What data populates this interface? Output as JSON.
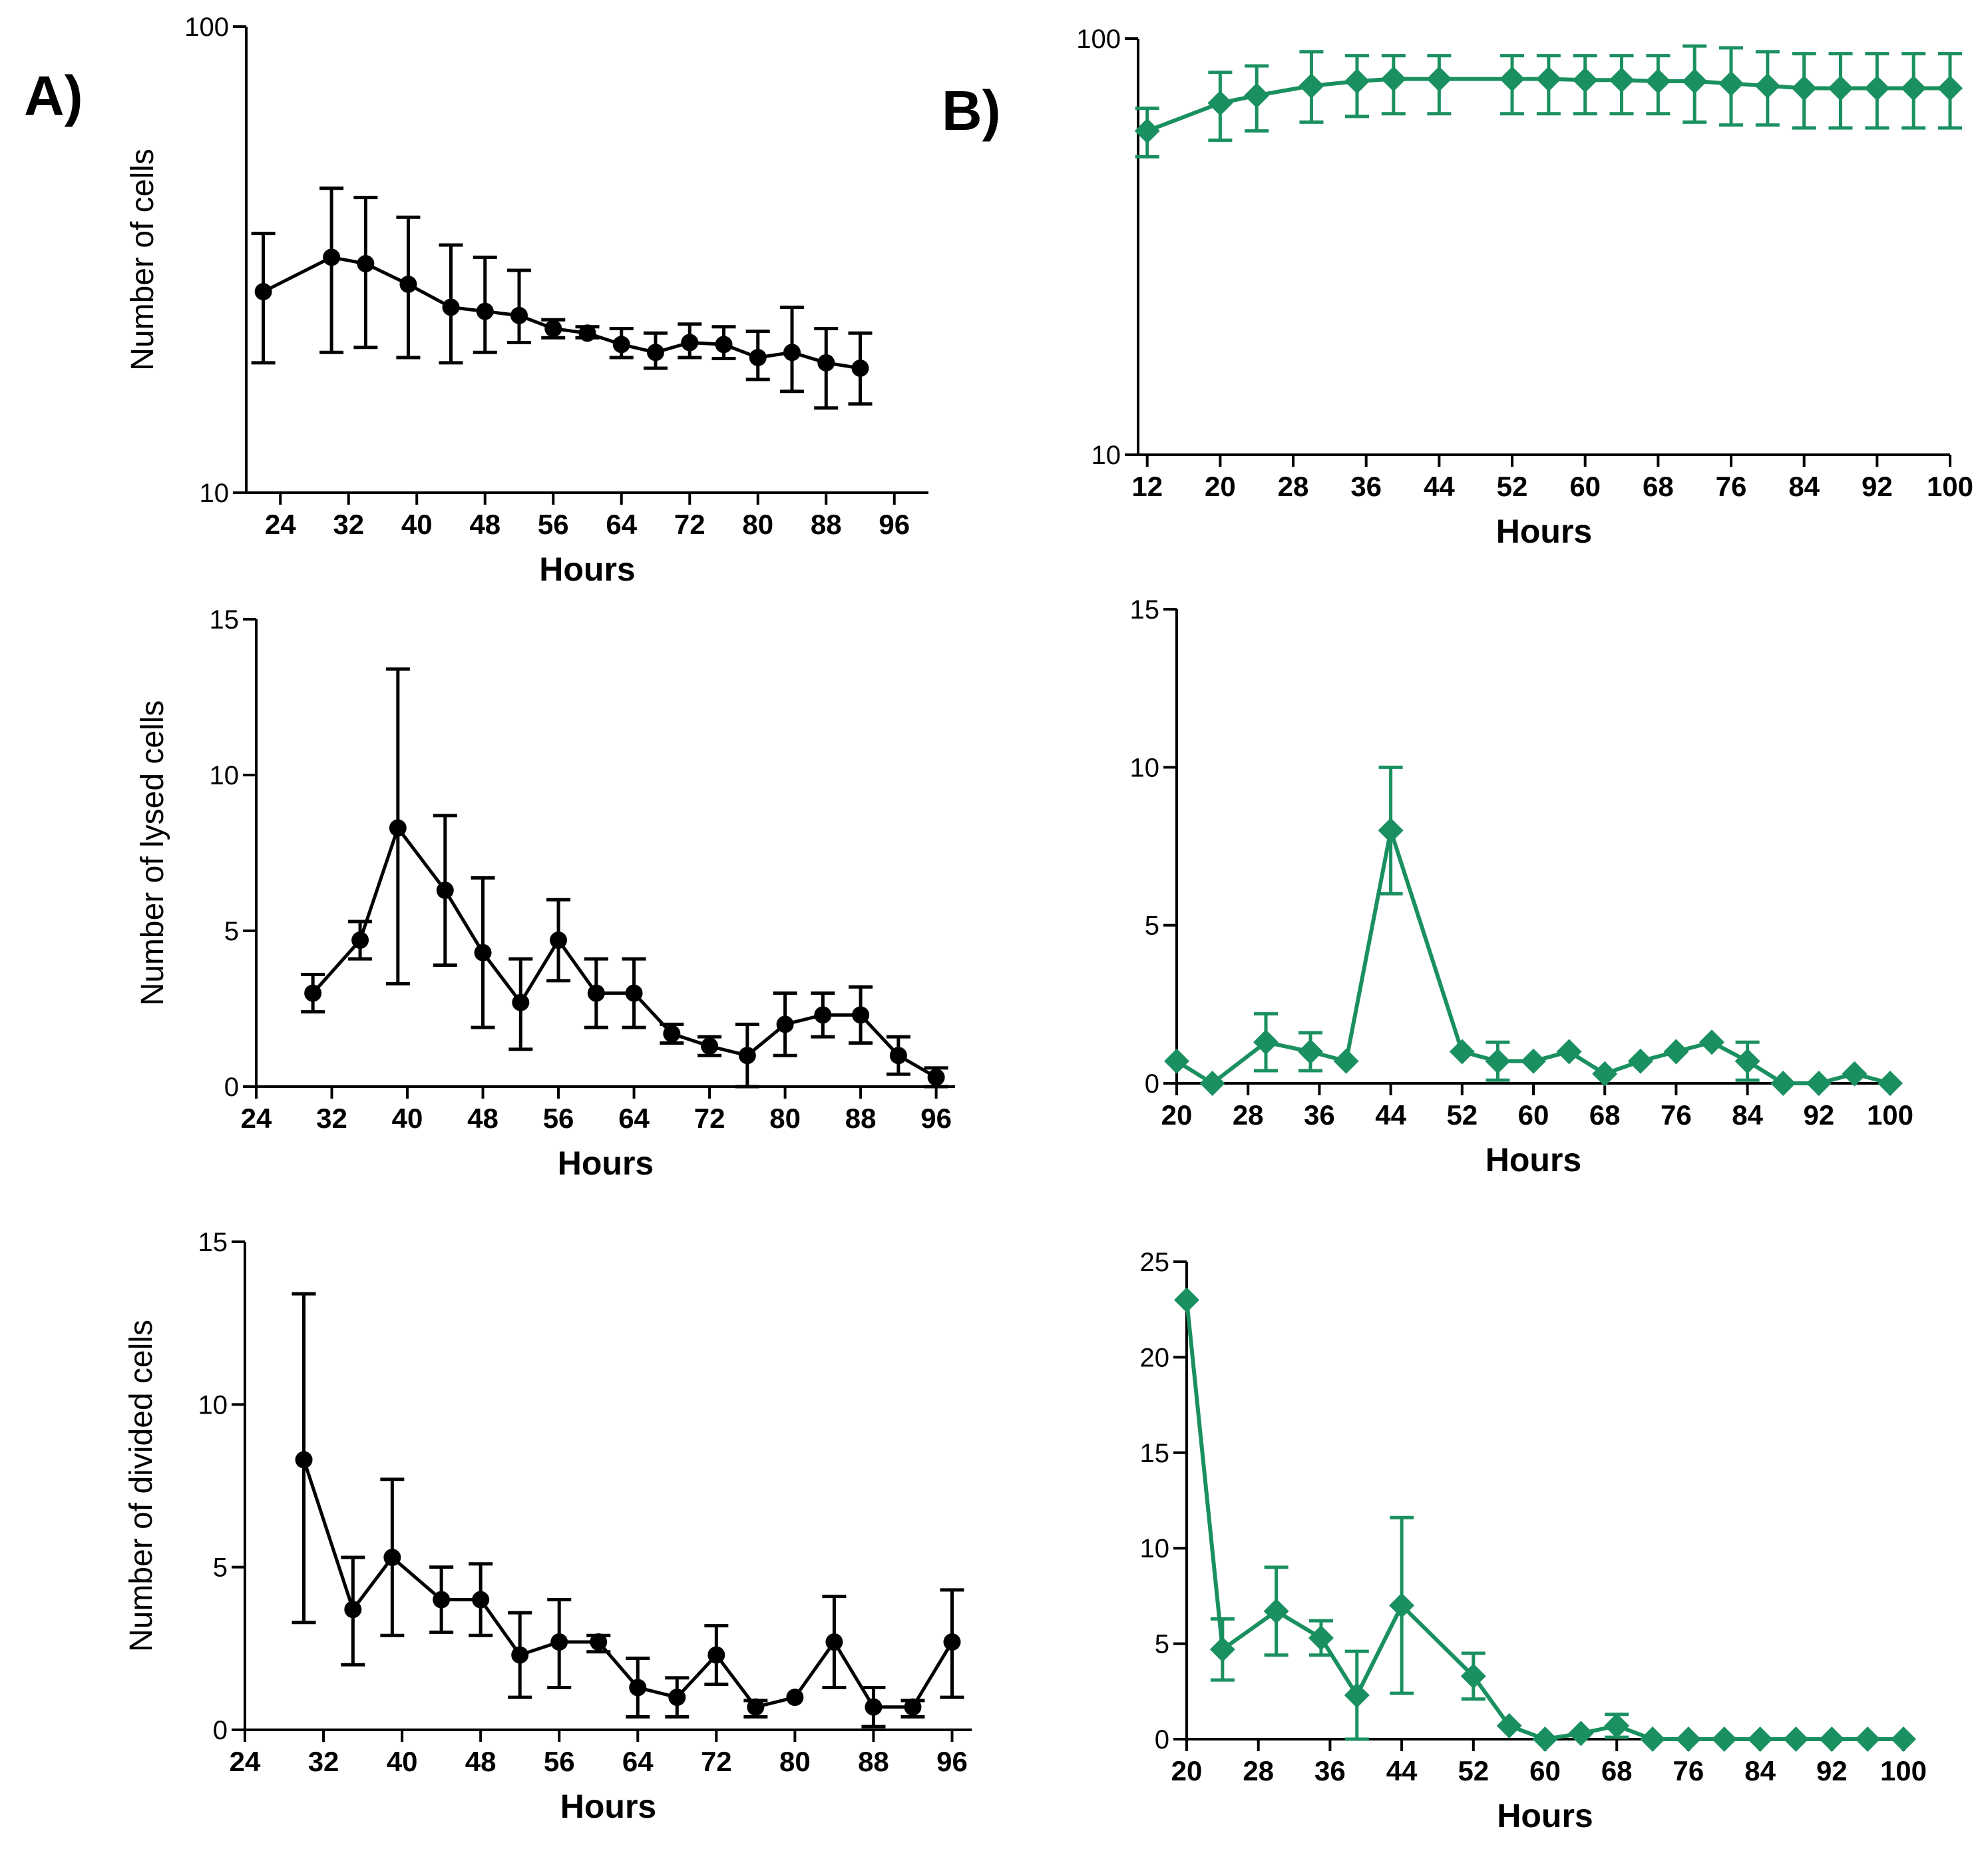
{
  "figure": {
    "panel_a_label": "A)",
    "panel_b_label": "B)",
    "colors": {
      "panel_a": "#000000",
      "panel_b": "#1a9060"
    }
  },
  "chart_data": [
    {
      "id": "a1",
      "panel": "A)",
      "type": "line",
      "yscale": "log",
      "xlabel": "Hours",
      "ylabel": "Number of cells",
      "xlim": [
        20,
        100
      ],
      "ylim": [
        10,
        100
      ],
      "xticks": [
        "24",
        "32",
        "40",
        "48",
        "56",
        "64",
        "72",
        "80",
        "88",
        "96"
      ],
      "yticks": [
        "10",
        "100"
      ],
      "marker": "circle",
      "series": [
        {
          "name": "Panel A",
          "x": [
            22,
            30,
            34,
            39,
            44,
            48,
            52,
            56,
            60,
            64,
            68,
            72,
            76,
            80,
            84,
            88,
            92
          ],
          "y": [
            27,
            32,
            31,
            28,
            25,
            24.5,
            24,
            22.5,
            22,
            20.8,
            20,
            21,
            20.8,
            19.5,
            20,
            19,
            18.5
          ],
          "upper": [
            36,
            45,
            43,
            39,
            34,
            32,
            30,
            23.5,
            22.7,
            22.5,
            22,
            23,
            22.7,
            22.2,
            25,
            22.5,
            22
          ],
          "lower": [
            19,
            20,
            20.5,
            19.5,
            19,
            20,
            21,
            21.5,
            21.5,
            19.5,
            18.5,
            19.5,
            19.4,
            17.5,
            16.5,
            15.2,
            15.5
          ]
        }
      ]
    },
    {
      "id": "a2",
      "panel": "A)",
      "type": "line",
      "yscale": "linear",
      "xlabel": "Hours",
      "ylabel": "Number of lysed cells",
      "xlim": [
        24,
        98
      ],
      "ylim": [
        0,
        15
      ],
      "xticks": [
        "24",
        "32",
        "40",
        "48",
        "56",
        "64",
        "72",
        "80",
        "88",
        "96"
      ],
      "yticks": [
        "0",
        "5",
        "10",
        "15"
      ],
      "marker": "circle",
      "series": [
        {
          "name": "Panel A",
          "x": [
            30,
            35,
            39,
            44,
            48,
            52,
            56,
            60,
            64,
            68,
            72,
            76,
            80,
            84,
            88,
            92,
            96
          ],
          "y": [
            3,
            4.7,
            8.3,
            6.3,
            4.3,
            2.7,
            4.7,
            3,
            3,
            1.7,
            1.3,
            1,
            2,
            2.3,
            2.3,
            1,
            0.3
          ],
          "upper": [
            3.6,
            5.3,
            13.4,
            8.7,
            6.7,
            4.1,
            6,
            4.1,
            4.1,
            2,
            1.6,
            2,
            3,
            3,
            3.2,
            1.6,
            0.6
          ],
          "lower": [
            2.4,
            4.1,
            3.3,
            3.9,
            1.9,
            1.2,
            3.4,
            1.9,
            1.9,
            1.4,
            1,
            0,
            1,
            1.6,
            1.4,
            0.4,
            0
          ]
        }
      ]
    },
    {
      "id": "a3",
      "panel": "A)",
      "type": "line",
      "yscale": "linear",
      "xlabel": "Hours",
      "ylabel": "Number of divided cells",
      "xlim": [
        24,
        98
      ],
      "ylim": [
        0,
        15
      ],
      "xticks": [
        "24",
        "32",
        "40",
        "48",
        "56",
        "64",
        "72",
        "80",
        "88",
        "96"
      ],
      "yticks": [
        "0",
        "5",
        "10",
        "15"
      ],
      "marker": "circle",
      "series": [
        {
          "name": "Panel A",
          "x": [
            30,
            35,
            39,
            44,
            48,
            52,
            56,
            60,
            64,
            68,
            72,
            76,
            80,
            84,
            88,
            92,
            96
          ],
          "y": [
            8.3,
            3.7,
            5.3,
            4,
            4,
            2.3,
            2.7,
            2.7,
            1.3,
            1,
            2.3,
            0.7,
            1,
            2.7,
            0.7,
            0.7,
            2.7
          ],
          "upper": [
            13.4,
            5.3,
            7.7,
            5,
            5.1,
            3.6,
            4,
            2.9,
            2.2,
            1.6,
            3.2,
            0.9,
            1,
            4.1,
            1.3,
            0.9,
            4.3
          ],
          "lower": [
            3.3,
            2,
            2.9,
            3,
            2.9,
            1,
            1.3,
            2.4,
            0.4,
            0.4,
            1.4,
            0.4,
            1,
            1.3,
            0.1,
            0.4,
            1
          ]
        }
      ]
    },
    {
      "id": "b1",
      "panel": "B)",
      "type": "line",
      "yscale": "log",
      "xlabel": "Hours",
      "ylabel": "",
      "xlim": [
        11,
        100
      ],
      "ylim": [
        10,
        100
      ],
      "xticks": [
        "12",
        "20",
        "28",
        "36",
        "44",
        "52",
        "60",
        "68",
        "76",
        "84",
        "92",
        "100"
      ],
      "yticks": [
        "10",
        "100"
      ],
      "marker": "diamond",
      "series": [
        {
          "name": "Panel B",
          "x": [
            12,
            20,
            24,
            30,
            35,
            39,
            44,
            52,
            56,
            60,
            64,
            68,
            72,
            76,
            80,
            84,
            88,
            92,
            96,
            100
          ],
          "y": [
            60,
            70,
            73,
            77,
            79,
            80,
            80,
            80,
            80,
            79.5,
            79.5,
            79,
            79,
            78,
            77,
            76,
            76,
            76,
            76,
            76
          ],
          "upper": [
            68,
            83,
            86,
            93,
            91,
            91,
            91,
            91,
            91,
            91,
            91,
            91,
            96,
            95,
            93,
            92,
            92,
            92,
            92,
            92
          ],
          "lower": [
            52,
            57,
            60,
            63,
            65,
            66,
            66,
            66,
            66,
            66,
            66,
            66,
            63,
            62,
            62,
            61,
            61,
            61,
            61,
            61
          ]
        }
      ]
    },
    {
      "id": "b2",
      "panel": "B)",
      "type": "line",
      "yscale": "linear",
      "xlabel": "Hours",
      "ylabel": "",
      "xlim": [
        20,
        100
      ],
      "ylim": [
        0,
        15
      ],
      "xticks": [
        "20",
        "28",
        "36",
        "44",
        "52",
        "60",
        "68",
        "76",
        "84",
        "92",
        "100"
      ],
      "yticks": [
        "0",
        "5",
        "10",
        "15"
      ],
      "marker": "diamond",
      "series": [
        {
          "name": "Panel B",
          "x": [
            20,
            24,
            30,
            35,
            39,
            44,
            52,
            56,
            60,
            64,
            68,
            72,
            76,
            80,
            84,
            88,
            92,
            96,
            100
          ],
          "y": [
            0.7,
            0,
            1.3,
            1,
            0.7,
            8,
            1,
            0.7,
            0.7,
            1,
            0.3,
            0.7,
            1,
            1.3,
            0.7,
            0,
            0,
            0.3,
            0
          ],
          "upper": [
            0.7,
            0,
            2.2,
            1.6,
            0.7,
            10,
            1,
            1.3,
            0.7,
            1,
            0.3,
            0.7,
            1,
            1.3,
            1.3,
            0,
            0,
            0.3,
            0
          ],
          "lower": [
            0.7,
            0,
            0.4,
            0.4,
            0.7,
            6,
            1,
            0.1,
            0.7,
            1,
            0.3,
            0.7,
            1,
            1.3,
            0.1,
            0,
            0,
            0.3,
            0
          ]
        }
      ]
    },
    {
      "id": "b3",
      "panel": "B)",
      "type": "line",
      "yscale": "linear",
      "xlabel": "Hours",
      "ylabel": "",
      "xlim": [
        20,
        100
      ],
      "ylim": [
        0,
        25
      ],
      "xticks": [
        "20",
        "28",
        "36",
        "44",
        "52",
        "60",
        "68",
        "76",
        "84",
        "92",
        "100"
      ],
      "yticks": [
        "0",
        "5",
        "10",
        "15",
        "20",
        "25"
      ],
      "marker": "diamond",
      "series": [
        {
          "name": "Panel B",
          "x": [
            20,
            24,
            30,
            35,
            39,
            44,
            52,
            56,
            60,
            64,
            68,
            72,
            76,
            80,
            84,
            88,
            92,
            96,
            100
          ],
          "y": [
            23,
            4.7,
            6.7,
            5.3,
            2.3,
            7,
            3.3,
            0.7,
            0,
            0.3,
            0.7,
            0,
            0,
            0,
            0,
            0,
            0,
            0,
            0
          ],
          "upper": [
            23,
            6.3,
            9,
            6.2,
            4.6,
            11.6,
            4.5,
            0.7,
            0,
            0.3,
            1.3,
            0,
            0,
            0,
            0,
            0,
            0,
            0,
            0
          ],
          "lower": [
            23,
            3.1,
            4.4,
            4.4,
            0,
            2.4,
            2.1,
            0.7,
            0,
            0.3,
            0.1,
            0,
            0,
            0,
            0,
            0,
            0,
            0,
            0
          ]
        }
      ]
    }
  ]
}
